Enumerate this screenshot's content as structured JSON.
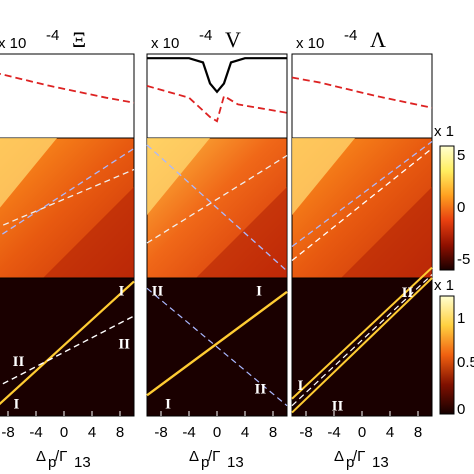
{
  "figure": {
    "columns": [
      {
        "title": "Ξ",
        "scale_label": "x 10",
        "scale_exp": "-4",
        "top_panel": {
          "type": "line",
          "series": [
            {
              "style": "dashed-red",
              "x": [
                -10,
                -6,
                -2,
                2,
                6,
                10
              ],
              "y": [
                0.78,
                0.7,
                0.62,
                0.55,
                0.48,
                0.42
              ]
            }
          ]
        },
        "map_lines": [
          {
            "x": [
              -10,
              10
            ],
            "y": [
              -0.3,
              0.55
            ],
            "color": "#f0f0f0"
          },
          {
            "x": [
              -10,
              10
            ],
            "y": [
              -0.45,
              0.85
            ],
            "color": "#aab8ff"
          }
        ],
        "bottom_lines": [
          {
            "x": [
              -10,
              10
            ],
            "y": [
              -0.9,
              0.95
            ],
            "color": "#ffcc33",
            "width": 2.2
          },
          {
            "x": [
              -10,
              10
            ],
            "y": [
              -0.6,
              0.45
            ],
            "color": "#ffffff",
            "width": 1.4
          }
        ],
        "labels": [
          {
            "text": "I",
            "x": 8.2,
            "y": 0.82
          },
          {
            "text": "II",
            "x": 8.6,
            "y": 0.05
          },
          {
            "text": "II",
            "x": -6.5,
            "y": -0.2
          },
          {
            "text": "I",
            "x": -6.8,
            "y": -0.82
          }
        ]
      },
      {
        "title": "V",
        "scale_label": "x 10",
        "scale_exp": "-4",
        "top_panel": {
          "type": "line",
          "series": [
            {
              "style": "solid-black",
              "x": [
                -10,
                -4,
                -2,
                -1,
                0,
                1,
                2,
                4,
                10
              ],
              "y": [
                0.95,
                0.95,
                0.9,
                0.65,
                0.55,
                0.65,
                0.9,
                0.95,
                0.95
              ]
            },
            {
              "style": "dashed-red",
              "x": [
                -10,
                -4,
                -1,
                0,
                1,
                3,
                10
              ],
              "y": [
                0.62,
                0.48,
                0.25,
                0.2,
                0.5,
                0.4,
                0.3
              ]
            }
          ]
        },
        "map_lines": [
          {
            "x": [
              -10,
              10
            ],
            "y": [
              0.9,
              -0.9
            ],
            "color": "#aab8ff"
          },
          {
            "x": [
              -10,
              10
            ],
            "y": [
              -0.5,
              0.75
            ],
            "color": "#f0f0f0"
          }
        ],
        "bottom_lines": [
          {
            "x": [
              -10,
              10
            ],
            "y": [
              -0.7,
              0.8
            ],
            "color": "#ffcc33",
            "width": 2.4
          },
          {
            "x": [
              -10,
              10
            ],
            "y": [
              0.85,
              -0.85
            ],
            "color": "#aab8ff",
            "width": 1.2
          }
        ],
        "labels": [
          {
            "text": "II",
            "x": -8.5,
            "y": 0.82
          },
          {
            "text": "I",
            "x": 6.0,
            "y": 0.82
          },
          {
            "text": "II",
            "x": 6.2,
            "y": -0.6
          },
          {
            "text": "I",
            "x": -7.0,
            "y": -0.82
          }
        ]
      },
      {
        "title": "Λ",
        "scale_label": "x 10",
        "scale_exp": "-4",
        "top_panel": {
          "type": "line",
          "series": [
            {
              "style": "dashed-red",
              "x": [
                -10,
                -6,
                -2,
                2,
                6,
                10
              ],
              "y": [
                0.72,
                0.66,
                0.58,
                0.5,
                0.43,
                0.36
              ]
            }
          ]
        },
        "map_lines": [
          {
            "x": [
              -10,
              10
            ],
            "y": [
              -0.75,
              0.85
            ],
            "color": "#ffffff"
          },
          {
            "x": [
              -10,
              10
            ],
            "y": [
              -0.55,
              0.95
            ],
            "color": "#aab8ff"
          }
        ],
        "bottom_lines": [
          {
            "x": [
              -10,
              10
            ],
            "y": [
              -0.95,
              1.0
            ],
            "color": "#ffcc33",
            "width": 2.0
          },
          {
            "x": [
              -10,
              10
            ],
            "y": [
              -0.75,
              1.15
            ],
            "color": "#ffcc33",
            "width": 2.0
          },
          {
            "x": [
              -10,
              10
            ],
            "y": [
              -0.85,
              1.05
            ],
            "color": "#ffffff",
            "width": 1.2
          }
        ],
        "labels": [
          {
            "text": "II",
            "x": 6.5,
            "y": 0.8
          },
          {
            "text": "I",
            "x": -8.8,
            "y": -0.55
          },
          {
            "text": "II",
            "x": -3.5,
            "y": -0.85
          }
        ]
      }
    ],
    "x_ticks": [
      "-8",
      "-4",
      "0",
      "4",
      "8"
    ],
    "xlabel": "Δ",
    "xlabel_sub1": "p",
    "xlabel_slash": "/Γ",
    "xlabel_sub2": "13",
    "colorbar_top": {
      "ticks": [
        "5",
        "0",
        "-5"
      ],
      "scale": "x 1"
    },
    "colorbar_bottom": {
      "ticks": [
        "1",
        "0.5",
        "0"
      ],
      "scale": "x 1"
    },
    "colors": {
      "hot_dark": "#1a0000",
      "hot_mid": "#e8400a",
      "hot_light": "#ffe880",
      "dash_red": "#dd2222"
    }
  }
}
